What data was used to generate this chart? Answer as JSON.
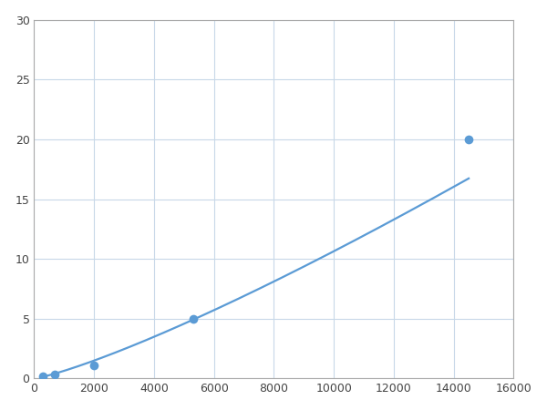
{
  "x_points": [
    300,
    700,
    2000,
    5300,
    14500
  ],
  "y_points": [
    0.2,
    0.35,
    1.1,
    5.0,
    20.0
  ],
  "xlim": [
    0,
    16000
  ],
  "ylim": [
    0,
    30
  ],
  "xticks": [
    0,
    2000,
    4000,
    6000,
    8000,
    10000,
    12000,
    14000,
    16000
  ],
  "yticks": [
    0,
    5,
    10,
    15,
    20,
    25,
    30
  ],
  "line_color": "#5b9bd5",
  "marker_color": "#5b9bd5",
  "marker_size": 7,
  "line_width": 1.6,
  "background_color": "#ffffff",
  "grid_color": "#c8d8e8",
  "spine_color": "#aaaaaa"
}
